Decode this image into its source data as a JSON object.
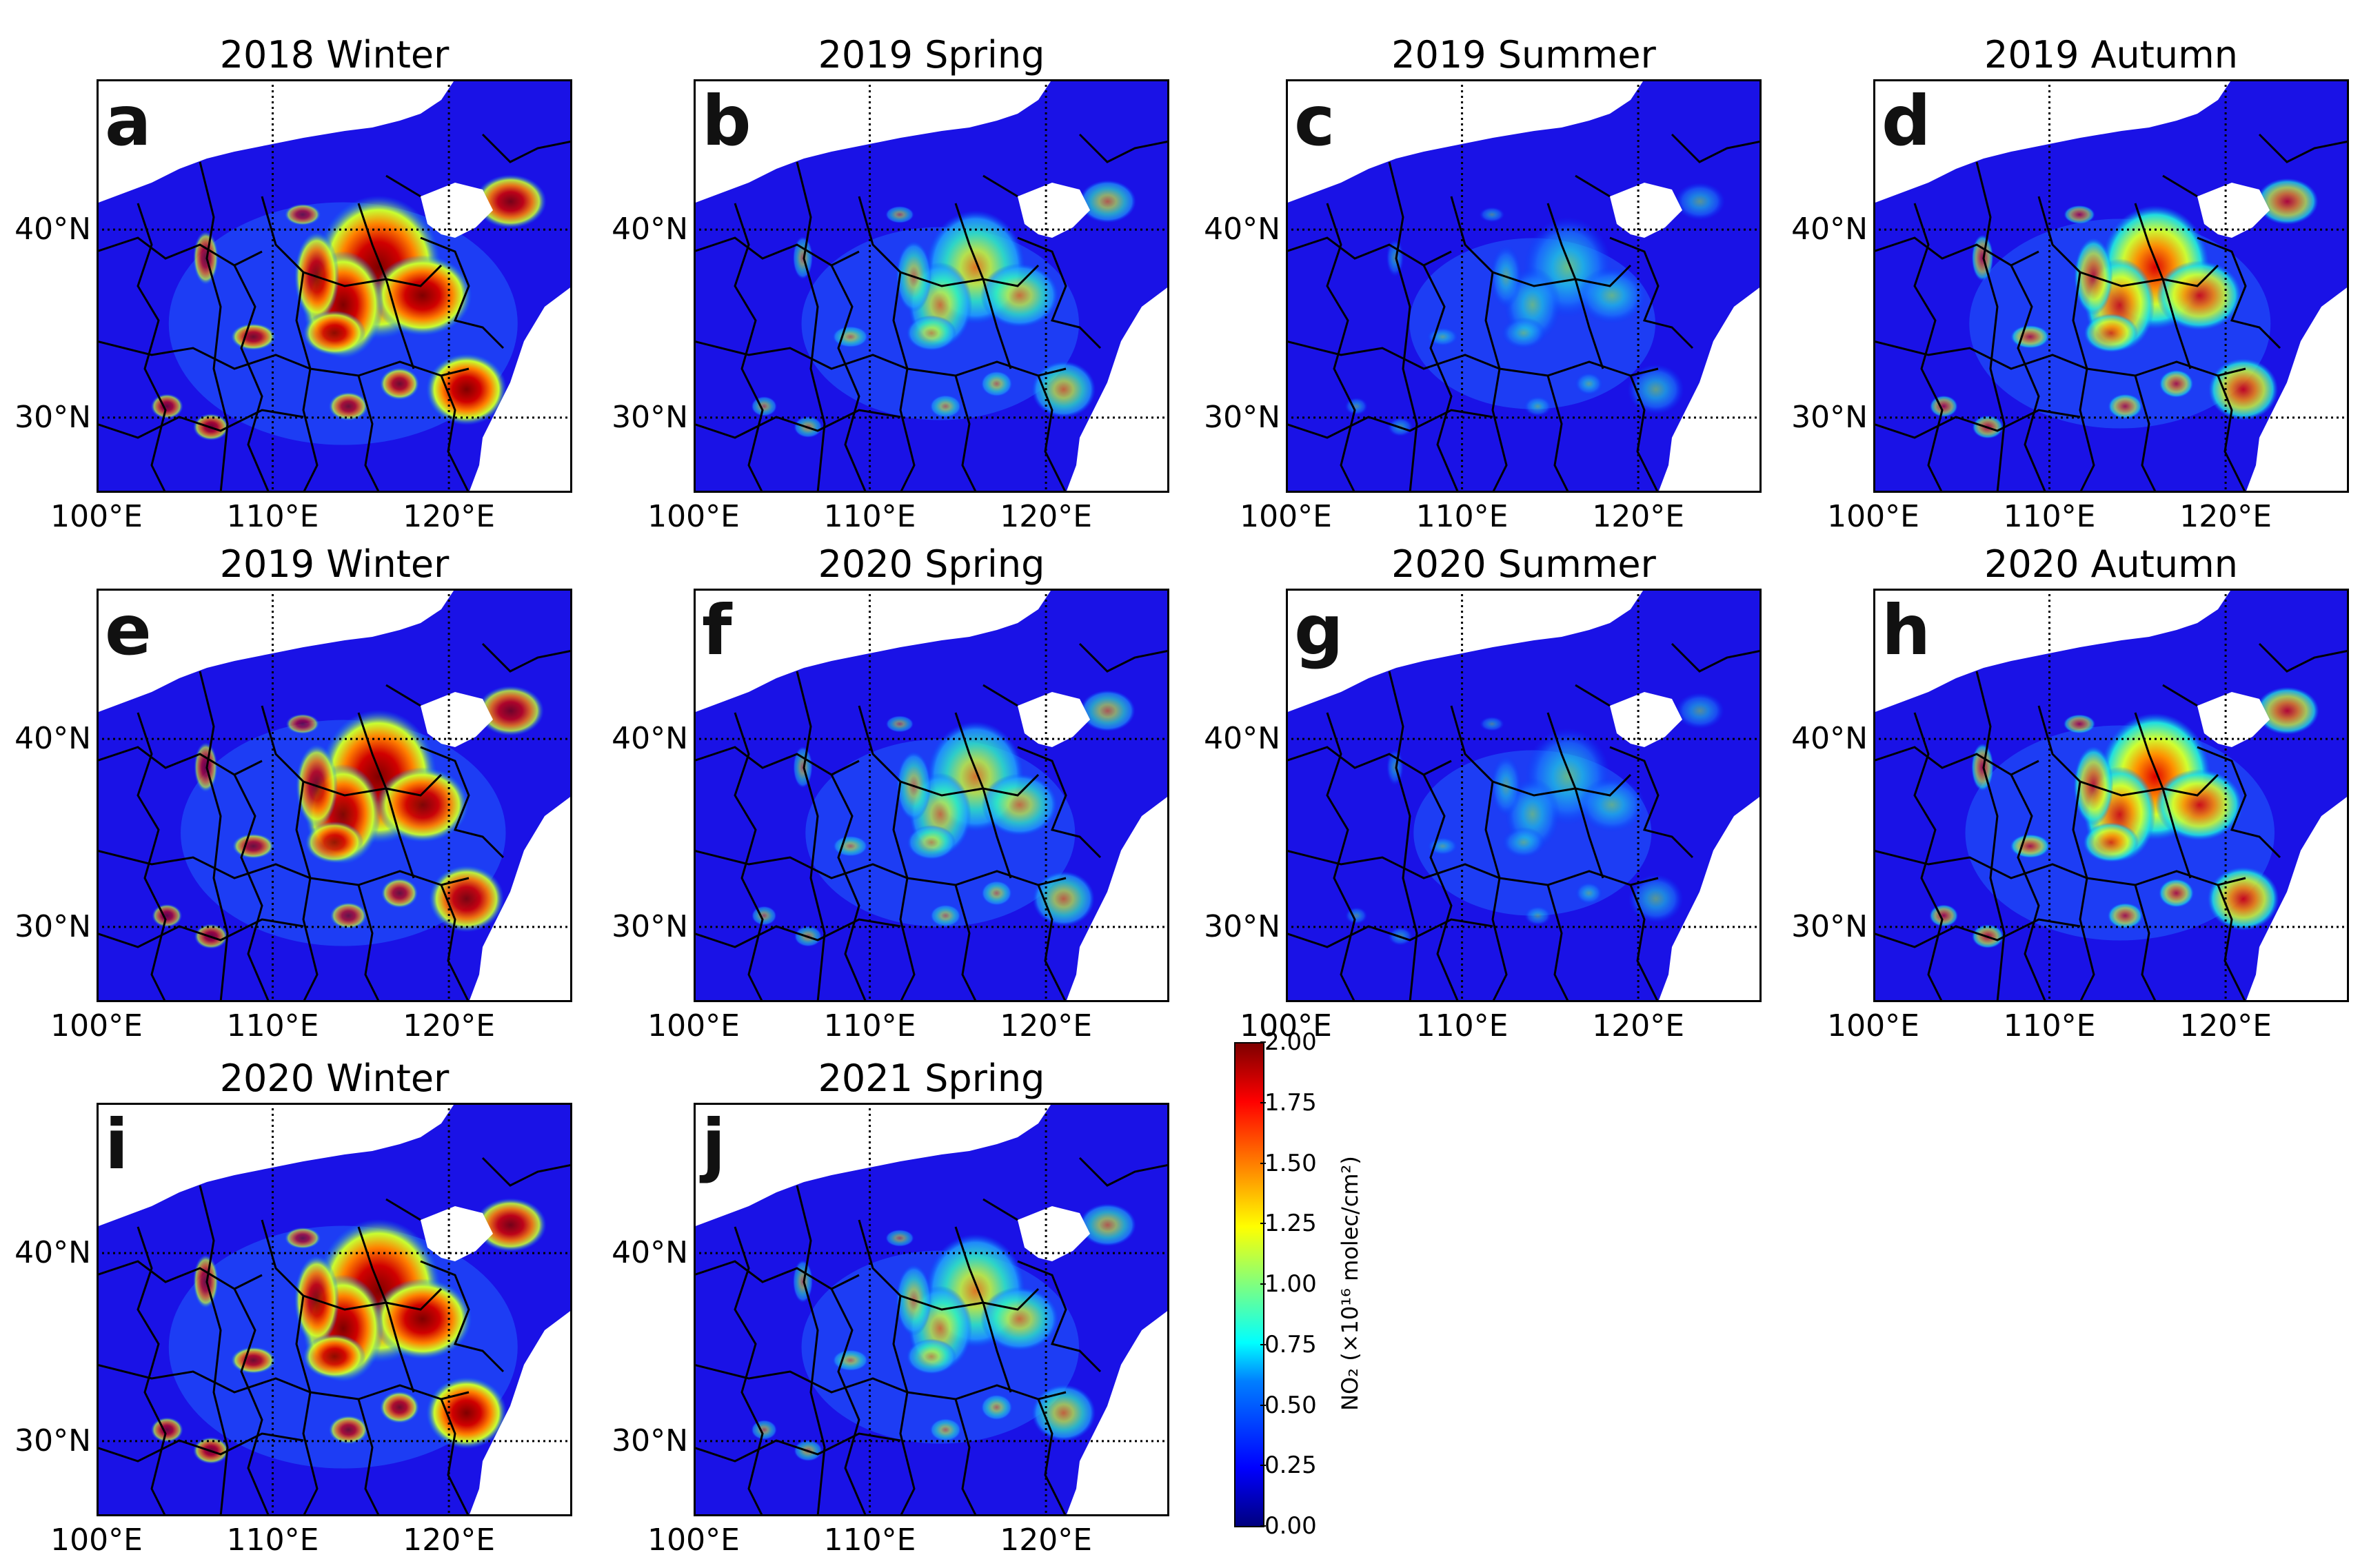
{
  "figure": {
    "latitude_labels": [
      "40°N",
      "30°N"
    ],
    "longitude_labels": [
      "100°E",
      "110°E",
      "120°E"
    ],
    "panels": [
      {
        "letter": "a",
        "title": "2018 Winter",
        "intensity": 1.0
      },
      {
        "letter": "b",
        "title": "2019 Spring",
        "intensity": 0.55
      },
      {
        "letter": "c",
        "title": "2019 Summer",
        "intensity": 0.35
      },
      {
        "letter": "d",
        "title": "2019 Autumn",
        "intensity": 0.7
      },
      {
        "letter": "e",
        "title": "2019 Winter",
        "intensity": 0.85
      },
      {
        "letter": "f",
        "title": "2020 Spring",
        "intensity": 0.5
      },
      {
        "letter": "g",
        "title": "2020 Summer",
        "intensity": 0.3
      },
      {
        "letter": "h",
        "title": "2020 Autumn",
        "intensity": 0.75
      },
      {
        "letter": "i",
        "title": "2020 Winter",
        "intensity": 1.0
      },
      {
        "letter": "j",
        "title": "2021 Spring",
        "intensity": 0.55
      }
    ]
  },
  "colorbar": {
    "label": "NO₂ (×10¹⁶ molec/cm²)",
    "ticks": [
      "0.00",
      "0.25",
      "0.50",
      "0.75",
      "1.00",
      "1.25",
      "1.50",
      "1.75",
      "2.00"
    ],
    "min": 0.0,
    "max": 2.0,
    "colormap": "jet"
  },
  "colors": {
    "background_low": "#1a12e6",
    "ocean": "#ffffff",
    "border": "#000000"
  }
}
